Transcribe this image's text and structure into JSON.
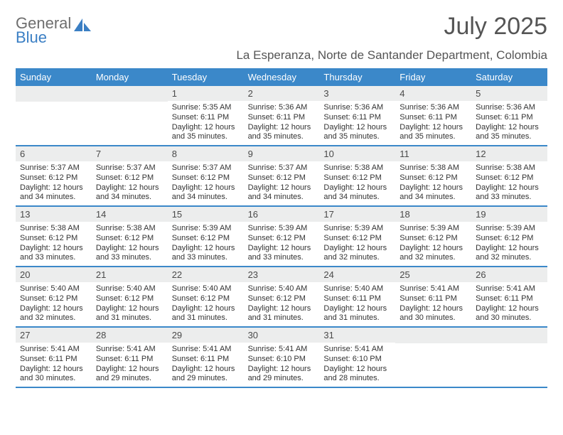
{
  "brand": {
    "top": "General",
    "bottom": "Blue"
  },
  "title": "July 2025",
  "location": "La Esperanza, Norte de Santander Department, Colombia",
  "colors": {
    "header_bg": "#3b88c9",
    "header_text": "#ffffff",
    "daynum_bg": "#eceded",
    "border": "#3b88c9",
    "logo_accent": "#3b7fc4",
    "logo_gray": "#6e6e6e"
  },
  "day_names": [
    "Sunday",
    "Monday",
    "Tuesday",
    "Wednesday",
    "Thursday",
    "Friday",
    "Saturday"
  ],
  "weeks": [
    [
      {
        "num": "",
        "sunrise": "",
        "sunset": "",
        "daylight": ""
      },
      {
        "num": "",
        "sunrise": "",
        "sunset": "",
        "daylight": ""
      },
      {
        "num": "1",
        "sunrise": "Sunrise: 5:35 AM",
        "sunset": "Sunset: 6:11 PM",
        "daylight": "Daylight: 12 hours and 35 minutes."
      },
      {
        "num": "2",
        "sunrise": "Sunrise: 5:36 AM",
        "sunset": "Sunset: 6:11 PM",
        "daylight": "Daylight: 12 hours and 35 minutes."
      },
      {
        "num": "3",
        "sunrise": "Sunrise: 5:36 AM",
        "sunset": "Sunset: 6:11 PM",
        "daylight": "Daylight: 12 hours and 35 minutes."
      },
      {
        "num": "4",
        "sunrise": "Sunrise: 5:36 AM",
        "sunset": "Sunset: 6:11 PM",
        "daylight": "Daylight: 12 hours and 35 minutes."
      },
      {
        "num": "5",
        "sunrise": "Sunrise: 5:36 AM",
        "sunset": "Sunset: 6:11 PM",
        "daylight": "Daylight: 12 hours and 35 minutes."
      }
    ],
    [
      {
        "num": "6",
        "sunrise": "Sunrise: 5:37 AM",
        "sunset": "Sunset: 6:12 PM",
        "daylight": "Daylight: 12 hours and 34 minutes."
      },
      {
        "num": "7",
        "sunrise": "Sunrise: 5:37 AM",
        "sunset": "Sunset: 6:12 PM",
        "daylight": "Daylight: 12 hours and 34 minutes."
      },
      {
        "num": "8",
        "sunrise": "Sunrise: 5:37 AM",
        "sunset": "Sunset: 6:12 PM",
        "daylight": "Daylight: 12 hours and 34 minutes."
      },
      {
        "num": "9",
        "sunrise": "Sunrise: 5:37 AM",
        "sunset": "Sunset: 6:12 PM",
        "daylight": "Daylight: 12 hours and 34 minutes."
      },
      {
        "num": "10",
        "sunrise": "Sunrise: 5:38 AM",
        "sunset": "Sunset: 6:12 PM",
        "daylight": "Daylight: 12 hours and 34 minutes."
      },
      {
        "num": "11",
        "sunrise": "Sunrise: 5:38 AM",
        "sunset": "Sunset: 6:12 PM",
        "daylight": "Daylight: 12 hours and 34 minutes."
      },
      {
        "num": "12",
        "sunrise": "Sunrise: 5:38 AM",
        "sunset": "Sunset: 6:12 PM",
        "daylight": "Daylight: 12 hours and 33 minutes."
      }
    ],
    [
      {
        "num": "13",
        "sunrise": "Sunrise: 5:38 AM",
        "sunset": "Sunset: 6:12 PM",
        "daylight": "Daylight: 12 hours and 33 minutes."
      },
      {
        "num": "14",
        "sunrise": "Sunrise: 5:38 AM",
        "sunset": "Sunset: 6:12 PM",
        "daylight": "Daylight: 12 hours and 33 minutes."
      },
      {
        "num": "15",
        "sunrise": "Sunrise: 5:39 AM",
        "sunset": "Sunset: 6:12 PM",
        "daylight": "Daylight: 12 hours and 33 minutes."
      },
      {
        "num": "16",
        "sunrise": "Sunrise: 5:39 AM",
        "sunset": "Sunset: 6:12 PM",
        "daylight": "Daylight: 12 hours and 33 minutes."
      },
      {
        "num": "17",
        "sunrise": "Sunrise: 5:39 AM",
        "sunset": "Sunset: 6:12 PM",
        "daylight": "Daylight: 12 hours and 32 minutes."
      },
      {
        "num": "18",
        "sunrise": "Sunrise: 5:39 AM",
        "sunset": "Sunset: 6:12 PM",
        "daylight": "Daylight: 12 hours and 32 minutes."
      },
      {
        "num": "19",
        "sunrise": "Sunrise: 5:39 AM",
        "sunset": "Sunset: 6:12 PM",
        "daylight": "Daylight: 12 hours and 32 minutes."
      }
    ],
    [
      {
        "num": "20",
        "sunrise": "Sunrise: 5:40 AM",
        "sunset": "Sunset: 6:12 PM",
        "daylight": "Daylight: 12 hours and 32 minutes."
      },
      {
        "num": "21",
        "sunrise": "Sunrise: 5:40 AM",
        "sunset": "Sunset: 6:12 PM",
        "daylight": "Daylight: 12 hours and 31 minutes."
      },
      {
        "num": "22",
        "sunrise": "Sunrise: 5:40 AM",
        "sunset": "Sunset: 6:12 PM",
        "daylight": "Daylight: 12 hours and 31 minutes."
      },
      {
        "num": "23",
        "sunrise": "Sunrise: 5:40 AM",
        "sunset": "Sunset: 6:12 PM",
        "daylight": "Daylight: 12 hours and 31 minutes."
      },
      {
        "num": "24",
        "sunrise": "Sunrise: 5:40 AM",
        "sunset": "Sunset: 6:11 PM",
        "daylight": "Daylight: 12 hours and 31 minutes."
      },
      {
        "num": "25",
        "sunrise": "Sunrise: 5:41 AM",
        "sunset": "Sunset: 6:11 PM",
        "daylight": "Daylight: 12 hours and 30 minutes."
      },
      {
        "num": "26",
        "sunrise": "Sunrise: 5:41 AM",
        "sunset": "Sunset: 6:11 PM",
        "daylight": "Daylight: 12 hours and 30 minutes."
      }
    ],
    [
      {
        "num": "27",
        "sunrise": "Sunrise: 5:41 AM",
        "sunset": "Sunset: 6:11 PM",
        "daylight": "Daylight: 12 hours and 30 minutes."
      },
      {
        "num": "28",
        "sunrise": "Sunrise: 5:41 AM",
        "sunset": "Sunset: 6:11 PM",
        "daylight": "Daylight: 12 hours and 29 minutes."
      },
      {
        "num": "29",
        "sunrise": "Sunrise: 5:41 AM",
        "sunset": "Sunset: 6:11 PM",
        "daylight": "Daylight: 12 hours and 29 minutes."
      },
      {
        "num": "30",
        "sunrise": "Sunrise: 5:41 AM",
        "sunset": "Sunset: 6:10 PM",
        "daylight": "Daylight: 12 hours and 29 minutes."
      },
      {
        "num": "31",
        "sunrise": "Sunrise: 5:41 AM",
        "sunset": "Sunset: 6:10 PM",
        "daylight": "Daylight: 12 hours and 28 minutes."
      },
      {
        "num": "",
        "sunrise": "",
        "sunset": "",
        "daylight": ""
      },
      {
        "num": "",
        "sunrise": "",
        "sunset": "",
        "daylight": ""
      }
    ]
  ]
}
